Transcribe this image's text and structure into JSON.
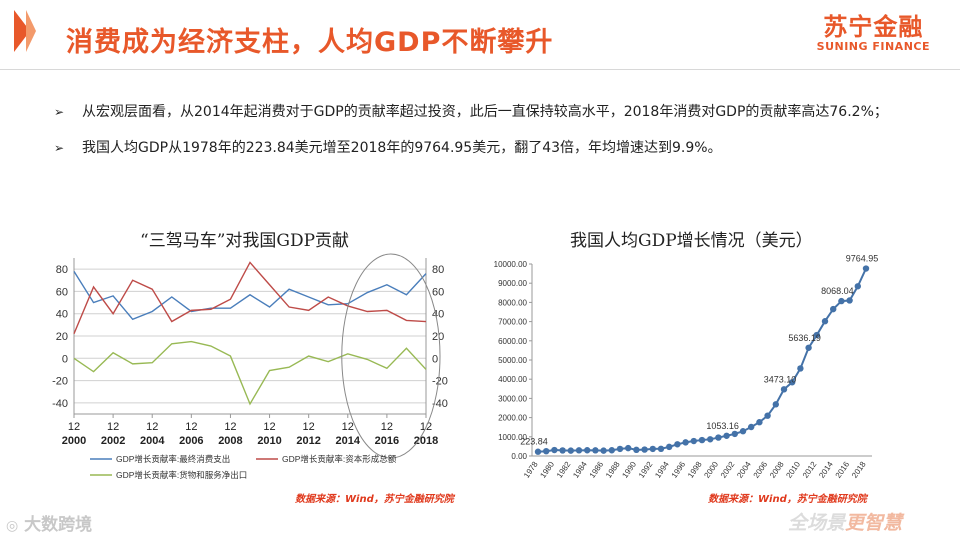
{
  "header": {
    "title": "消费成为经济支柱，人均GDP不断攀升",
    "brand_cn": "苏宁金融",
    "brand_en": "SUNING FINANCE"
  },
  "bullets": [
    "从宏观层面看，从2014年起消费对于GDP的贡献率超过投资，此后一直保持较高水平，2018年消费对GDP的贡献率高达76.2%；",
    "我国人均GDP从1978年的223.84美元增至2018年的9764.95美元，翻了43倍，年均增速达到9.9%。"
  ],
  "bullet_marker": "➢",
  "footer": {
    "left_logo": "大数跨境",
    "right_logo_1": "全场景",
    "right_logo_2": "更智慧"
  },
  "colors": {
    "accent": "#e8582a",
    "consumption": "#4a7ebb",
    "investment": "#be4b48",
    "net_export": "#98b954",
    "gdp_line": "#4472a8",
    "source": "#e03a1e"
  },
  "chart_data": [
    {
      "type": "line",
      "title": "“三驾马车”对我国GDP贡献",
      "x": [
        2000,
        2001,
        2002,
        2003,
        2004,
        2005,
        2006,
        2007,
        2008,
        2009,
        2010,
        2011,
        2012,
        2013,
        2014,
        2015,
        2016,
        2017,
        2018
      ],
      "x_tick_labels": [
        "2000",
        "2002",
        "2004",
        "2006",
        "2008",
        "2010",
        "2012",
        "2014",
        "2016",
        "2018"
      ],
      "x_tick_month": "12",
      "ylim": [
        -50,
        90
      ],
      "y_ticks": [
        -40,
        -20,
        0,
        20,
        40,
        60,
        80
      ],
      "grid": true,
      "legend_position": "bottom",
      "annotation": "ellipse highlighting 2014-2018",
      "series": [
        {
          "name": "GDP增长贡献率:最终消费支出",
          "values": [
            78,
            50,
            56,
            35,
            42,
            55,
            42,
            45,
            45,
            57,
            46,
            62,
            55,
            48,
            49,
            59,
            66,
            57,
            76
          ]
        },
        {
          "name": "GDP增长贡献率:资本形成总额",
          "values": [
            22,
            64,
            40,
            70,
            62,
            33,
            43,
            44,
            53,
            86,
            66,
            46,
            43,
            55,
            47,
            42,
            43,
            34,
            33
          ]
        },
        {
          "name": "GDP增长贡献率:货物和服务净出口",
          "values": [
            0,
            -12,
            5,
            -5,
            -4,
            13,
            15,
            11,
            2,
            -41,
            -11,
            -8,
            2,
            -3,
            4,
            -1,
            -9,
            9,
            -10
          ]
        }
      ],
      "source": "数据来源：Wind，苏宁金融研究院"
    },
    {
      "type": "line",
      "title": "我国人均GDP增长情况（美元）",
      "x": [
        1978,
        1979,
        1980,
        1981,
        1982,
        1983,
        1984,
        1985,
        1986,
        1987,
        1988,
        1989,
        1990,
        1991,
        1992,
        1993,
        1994,
        1995,
        1996,
        1997,
        1998,
        1999,
        2000,
        2001,
        2002,
        2003,
        2004,
        2005,
        2006,
        2007,
        2008,
        2009,
        2010,
        2011,
        2012,
        2013,
        2014,
        2015,
        2016,
        2017,
        2018
      ],
      "x_tick_labels": [
        "1978",
        "1980",
        "1982",
        "1984",
        "1986",
        "1988",
        "1990",
        "1992",
        "1994",
        "1996",
        "1998",
        "2000",
        "2002",
        "2004",
        "2006",
        "2008",
        "2010",
        "2012",
        "2014",
        "2016",
        "2018"
      ],
      "ylim": [
        0,
        10000
      ],
      "y_ticks": [
        "0.00",
        "1000.00",
        "2000.00",
        "3000.00",
        "4000.00",
        "5000.00",
        "6000.00",
        "7000.00",
        "8000.00",
        "9000.00",
        "10000.00"
      ],
      "grid": false,
      "values": [
        223.84,
        250,
        310,
        290,
        280,
        295,
        300,
        295,
        280,
        300,
        370,
        410,
        320,
        335,
        370,
        375,
        475,
        610,
        710,
        780,
        830,
        870,
        960,
        1053.16,
        1150,
        1290,
        1510,
        1760,
        2100,
        2690,
        3473.1,
        3840,
        4560,
        5636.19,
        6300,
        7020,
        7650,
        8068.04,
        8100,
        8840,
        9764.95
      ],
      "point_labels": [
        {
          "x": 1978,
          "text": "223.84"
        },
        {
          "x": 2001,
          "text": "1053.16"
        },
        {
          "x": 2008,
          "text": "3473.10"
        },
        {
          "x": 2011,
          "text": "5636.19"
        },
        {
          "x": 2015,
          "text": "8068.04"
        },
        {
          "x": 2018,
          "text": "9764.95"
        }
      ],
      "source": "数据来源：Wind，苏宁金融研究院"
    }
  ]
}
